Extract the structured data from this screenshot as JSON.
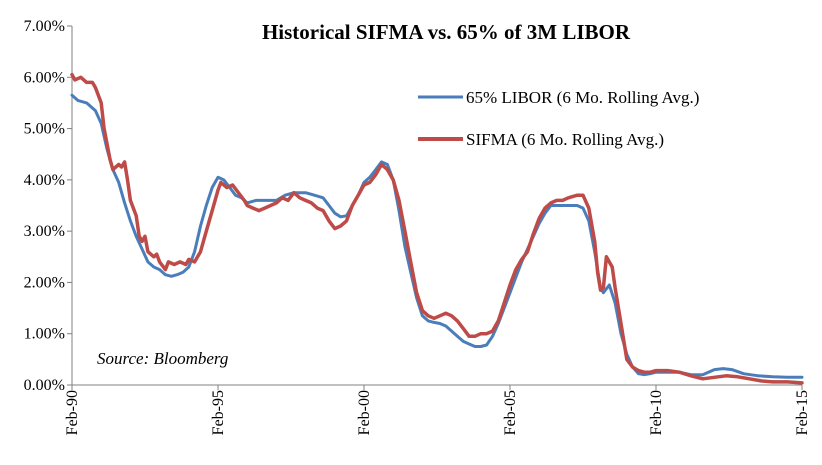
{
  "chart_data": {
    "type": "line",
    "title": "Historical SIFMA vs. 65% of 3M LIBOR",
    "annotation": "Source:  Bloomberg",
    "xlabel": "",
    "ylabel": "",
    "x_ticks": [
      "Feb-90",
      "Feb-95",
      "Feb-00",
      "Feb-05",
      "Feb-10",
      "Feb-15"
    ],
    "y_ticks": [
      "0.00%",
      "1.00%",
      "2.00%",
      "3.00%",
      "4.00%",
      "5.00%",
      "6.00%",
      "7.00%"
    ],
    "xlim": [
      1990.0,
      2015.0
    ],
    "ylim": [
      0,
      7
    ],
    "grid": false,
    "legend_position": "top-right",
    "series": [
      {
        "name": "65% LIBOR (6 Mo. Rolling Avg.)",
        "color": "#4a7ebb",
        "points": [
          [
            1990.0,
            5.65
          ],
          [
            1990.2,
            5.55
          ],
          [
            1990.5,
            5.5
          ],
          [
            1990.8,
            5.35
          ],
          [
            1991.0,
            5.1
          ],
          [
            1991.2,
            4.6
          ],
          [
            1991.4,
            4.2
          ],
          [
            1991.6,
            3.95
          ],
          [
            1991.8,
            3.55
          ],
          [
            1992.0,
            3.2
          ],
          [
            1992.2,
            2.9
          ],
          [
            1992.4,
            2.65
          ],
          [
            1992.6,
            2.4
          ],
          [
            1992.8,
            2.3
          ],
          [
            1993.0,
            2.25
          ],
          [
            1993.2,
            2.15
          ],
          [
            1993.4,
            2.12
          ],
          [
            1993.6,
            2.15
          ],
          [
            1993.8,
            2.2
          ],
          [
            1994.0,
            2.3
          ],
          [
            1994.2,
            2.6
          ],
          [
            1994.4,
            3.1
          ],
          [
            1994.6,
            3.5
          ],
          [
            1994.8,
            3.85
          ],
          [
            1995.0,
            4.05
          ],
          [
            1995.2,
            4.0
          ],
          [
            1995.4,
            3.85
          ],
          [
            1995.6,
            3.7
          ],
          [
            1995.8,
            3.65
          ],
          [
            1996.0,
            3.55
          ],
          [
            1996.3,
            3.6
          ],
          [
            1996.6,
            3.6
          ],
          [
            1997.0,
            3.6
          ],
          [
            1997.3,
            3.7
          ],
          [
            1997.6,
            3.75
          ],
          [
            1998.0,
            3.75
          ],
          [
            1998.3,
            3.7
          ],
          [
            1998.6,
            3.65
          ],
          [
            1998.8,
            3.5
          ],
          [
            1999.0,
            3.35
          ],
          [
            1999.2,
            3.28
          ],
          [
            1999.4,
            3.3
          ],
          [
            1999.6,
            3.5
          ],
          [
            1999.8,
            3.7
          ],
          [
            2000.0,
            3.95
          ],
          [
            2000.2,
            4.05
          ],
          [
            2000.4,
            4.2
          ],
          [
            2000.6,
            4.35
          ],
          [
            2000.8,
            4.3
          ],
          [
            2001.0,
            4.0
          ],
          [
            2001.2,
            3.4
          ],
          [
            2001.4,
            2.7
          ],
          [
            2001.6,
            2.2
          ],
          [
            2001.8,
            1.7
          ],
          [
            2002.0,
            1.35
          ],
          [
            2002.2,
            1.25
          ],
          [
            2002.4,
            1.22
          ],
          [
            2002.6,
            1.2
          ],
          [
            2002.8,
            1.15
          ],
          [
            2003.0,
            1.05
          ],
          [
            2003.2,
            0.95
          ],
          [
            2003.4,
            0.85
          ],
          [
            2003.6,
            0.8
          ],
          [
            2003.8,
            0.75
          ],
          [
            2004.0,
            0.75
          ],
          [
            2004.2,
            0.78
          ],
          [
            2004.4,
            0.95
          ],
          [
            2004.6,
            1.2
          ],
          [
            2004.8,
            1.5
          ],
          [
            2005.0,
            1.8
          ],
          [
            2005.2,
            2.1
          ],
          [
            2005.4,
            2.4
          ],
          [
            2005.6,
            2.65
          ],
          [
            2005.8,
            2.9
          ],
          [
            2006.0,
            3.15
          ],
          [
            2006.2,
            3.35
          ],
          [
            2006.4,
            3.5
          ],
          [
            2006.6,
            3.5
          ],
          [
            2006.8,
            3.5
          ],
          [
            2007.0,
            3.5
          ],
          [
            2007.3,
            3.5
          ],
          [
            2007.5,
            3.45
          ],
          [
            2007.7,
            3.2
          ],
          [
            2007.9,
            2.6
          ],
          [
            2008.1,
            1.9
          ],
          [
            2008.2,
            1.8
          ],
          [
            2008.4,
            1.95
          ],
          [
            2008.6,
            1.6
          ],
          [
            2008.8,
            1.0
          ],
          [
            2009.0,
            0.6
          ],
          [
            2009.2,
            0.35
          ],
          [
            2009.4,
            0.22
          ],
          [
            2009.6,
            0.2
          ],
          [
            2009.8,
            0.22
          ],
          [
            2010.0,
            0.25
          ],
          [
            2010.4,
            0.25
          ],
          [
            2010.8,
            0.25
          ],
          [
            2011.2,
            0.2
          ],
          [
            2011.6,
            0.2
          ],
          [
            2012.0,
            0.3
          ],
          [
            2012.3,
            0.32
          ],
          [
            2012.6,
            0.3
          ],
          [
            2013.0,
            0.22
          ],
          [
            2013.5,
            0.18
          ],
          [
            2014.0,
            0.16
          ],
          [
            2014.5,
            0.15
          ],
          [
            2015.0,
            0.15
          ]
        ]
      },
      {
        "name": "SIFMA (6 Mo. Rolling Avg.)",
        "color": "#be4b48",
        "points": [
          [
            1990.0,
            6.05
          ],
          [
            1990.1,
            5.95
          ],
          [
            1990.3,
            6.0
          ],
          [
            1990.5,
            5.9
          ],
          [
            1990.7,
            5.9
          ],
          [
            1990.8,
            5.8
          ],
          [
            1991.0,
            5.5
          ],
          [
            1991.1,
            5.0
          ],
          [
            1991.3,
            4.4
          ],
          [
            1991.4,
            4.2
          ],
          [
            1991.6,
            4.3
          ],
          [
            1991.7,
            4.25
          ],
          [
            1991.8,
            4.35
          ],
          [
            1991.9,
            4.0
          ],
          [
            1992.0,
            3.6
          ],
          [
            1992.2,
            3.3
          ],
          [
            1992.3,
            2.9
          ],
          [
            1992.4,
            2.8
          ],
          [
            1992.5,
            2.9
          ],
          [
            1992.6,
            2.6
          ],
          [
            1992.8,
            2.5
          ],
          [
            1992.9,
            2.55
          ],
          [
            1993.0,
            2.4
          ],
          [
            1993.2,
            2.25
          ],
          [
            1993.3,
            2.4
          ],
          [
            1993.5,
            2.35
          ],
          [
            1993.7,
            2.4
          ],
          [
            1993.9,
            2.35
          ],
          [
            1994.0,
            2.45
          ],
          [
            1994.2,
            2.4
          ],
          [
            1994.4,
            2.6
          ],
          [
            1994.6,
            3.0
          ],
          [
            1994.8,
            3.4
          ],
          [
            1995.0,
            3.8
          ],
          [
            1995.1,
            3.95
          ],
          [
            1995.3,
            3.85
          ],
          [
            1995.5,
            3.9
          ],
          [
            1995.7,
            3.75
          ],
          [
            1995.9,
            3.6
          ],
          [
            1996.0,
            3.5
          ],
          [
            1996.2,
            3.45
          ],
          [
            1996.4,
            3.4
          ],
          [
            1996.6,
            3.45
          ],
          [
            1996.8,
            3.5
          ],
          [
            1997.0,
            3.55
          ],
          [
            1997.2,
            3.65
          ],
          [
            1997.4,
            3.6
          ],
          [
            1997.6,
            3.75
          ],
          [
            1997.8,
            3.65
          ],
          [
            1998.0,
            3.6
          ],
          [
            1998.2,
            3.55
          ],
          [
            1998.4,
            3.45
          ],
          [
            1998.6,
            3.4
          ],
          [
            1998.8,
            3.2
          ],
          [
            1999.0,
            3.05
          ],
          [
            1999.2,
            3.1
          ],
          [
            1999.4,
            3.2
          ],
          [
            1999.6,
            3.5
          ],
          [
            1999.8,
            3.7
          ],
          [
            2000.0,
            3.9
          ],
          [
            2000.2,
            3.95
          ],
          [
            2000.4,
            4.1
          ],
          [
            2000.6,
            4.3
          ],
          [
            2000.8,
            4.2
          ],
          [
            2001.0,
            4.0
          ],
          [
            2001.2,
            3.6
          ],
          [
            2001.4,
            3.0
          ],
          [
            2001.6,
            2.4
          ],
          [
            2001.8,
            1.8
          ],
          [
            2002.0,
            1.45
          ],
          [
            2002.2,
            1.35
          ],
          [
            2002.4,
            1.3
          ],
          [
            2002.6,
            1.35
          ],
          [
            2002.8,
            1.4
          ],
          [
            2003.0,
            1.35
          ],
          [
            2003.2,
            1.25
          ],
          [
            2003.4,
            1.1
          ],
          [
            2003.6,
            0.95
          ],
          [
            2003.8,
            0.95
          ],
          [
            2004.0,
            1.0
          ],
          [
            2004.2,
            1.0
          ],
          [
            2004.4,
            1.05
          ],
          [
            2004.6,
            1.25
          ],
          [
            2004.8,
            1.6
          ],
          [
            2005.0,
            1.95
          ],
          [
            2005.2,
            2.25
          ],
          [
            2005.4,
            2.45
          ],
          [
            2005.6,
            2.6
          ],
          [
            2005.8,
            2.95
          ],
          [
            2006.0,
            3.25
          ],
          [
            2006.2,
            3.45
          ],
          [
            2006.4,
            3.55
          ],
          [
            2006.6,
            3.6
          ],
          [
            2006.8,
            3.6
          ],
          [
            2007.0,
            3.65
          ],
          [
            2007.3,
            3.7
          ],
          [
            2007.5,
            3.7
          ],
          [
            2007.7,
            3.45
          ],
          [
            2007.9,
            2.8
          ],
          [
            2008.0,
            2.2
          ],
          [
            2008.1,
            1.85
          ],
          [
            2008.2,
            1.9
          ],
          [
            2008.3,
            2.5
          ],
          [
            2008.5,
            2.3
          ],
          [
            2008.6,
            1.9
          ],
          [
            2008.8,
            1.2
          ],
          [
            2009.0,
            0.5
          ],
          [
            2009.2,
            0.35
          ],
          [
            2009.4,
            0.28
          ],
          [
            2009.6,
            0.25
          ],
          [
            2009.8,
            0.25
          ],
          [
            2010.0,
            0.28
          ],
          [
            2010.4,
            0.28
          ],
          [
            2010.8,
            0.25
          ],
          [
            2011.2,
            0.18
          ],
          [
            2011.6,
            0.12
          ],
          [
            2012.0,
            0.15
          ],
          [
            2012.4,
            0.18
          ],
          [
            2012.8,
            0.16
          ],
          [
            2013.2,
            0.12
          ],
          [
            2013.6,
            0.08
          ],
          [
            2014.0,
            0.06
          ],
          [
            2014.5,
            0.06
          ],
          [
            2015.0,
            0.04
          ]
        ]
      }
    ]
  }
}
